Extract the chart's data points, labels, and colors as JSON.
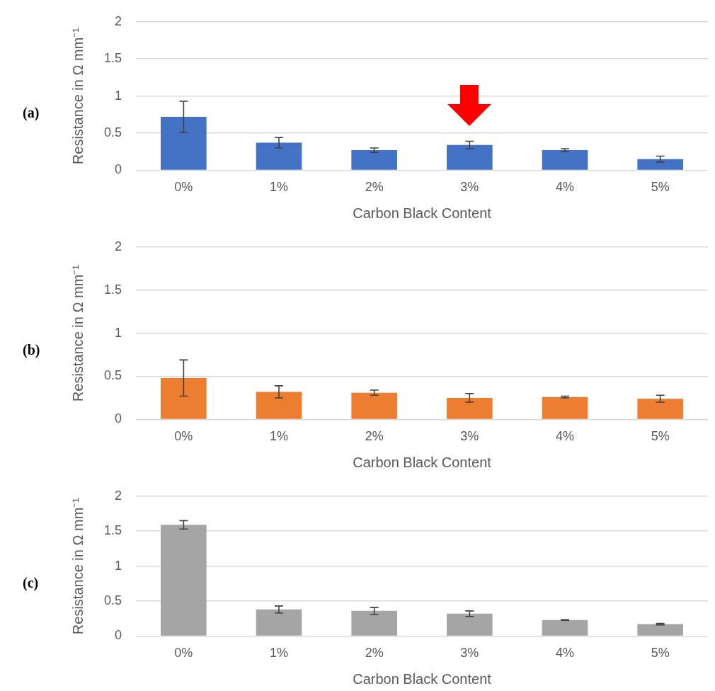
{
  "chart_data": [
    {
      "type": "bar",
      "title": "(a)",
      "categories": [
        "0%",
        "1%",
        "2%",
        "3%",
        "4%",
        "5%"
      ],
      "values": [
        0.72,
        0.37,
        0.27,
        0.34,
        0.27,
        0.15
      ],
      "errors": [
        0.21,
        0.07,
        0.03,
        0.05,
        0.02,
        0.04
      ],
      "color": "#4472c4",
      "xlabel": "Carbon Black Content",
      "ylabel": "Resistance in Ω mm⁻¹",
      "ylim": [
        0,
        2
      ],
      "yticks": [
        0,
        0.5,
        1,
        1.5,
        2
      ],
      "grid": "y",
      "legend": false
    },
    {
      "type": "bar",
      "title": "(b)",
      "categories": [
        "0%",
        "1%",
        "2%",
        "3%",
        "4%",
        "5%"
      ],
      "values": [
        0.48,
        0.32,
        0.31,
        0.25,
        0.26,
        0.24
      ],
      "errors": [
        0.21,
        0.07,
        0.03,
        0.05,
        0.01,
        0.04
      ],
      "color": "#ed7d31",
      "xlabel": "Carbon Black Content",
      "ylabel": "Resistance in Ω mm⁻¹",
      "ylim": [
        0,
        2
      ],
      "yticks": [
        0,
        0.5,
        1,
        1.5,
        2
      ],
      "grid": "y",
      "legend": false
    },
    {
      "type": "bar",
      "title": "(c)",
      "categories": [
        "0%",
        "1%",
        "2%",
        "3%",
        "4%",
        "5%"
      ],
      "values": [
        1.59,
        0.38,
        0.36,
        0.32,
        0.23,
        0.17
      ],
      "errors": [
        0.06,
        0.05,
        0.05,
        0.04,
        0.005,
        0.01
      ],
      "color": "#a5a5a5",
      "xlabel": "Carbon Black Content",
      "ylabel": "Resistance in Ω mm⁻¹",
      "ylim": [
        0,
        2
      ],
      "yticks": [
        0,
        0.5,
        1,
        1.5,
        2
      ],
      "grid": "y",
      "legend": false
    }
  ]
}
